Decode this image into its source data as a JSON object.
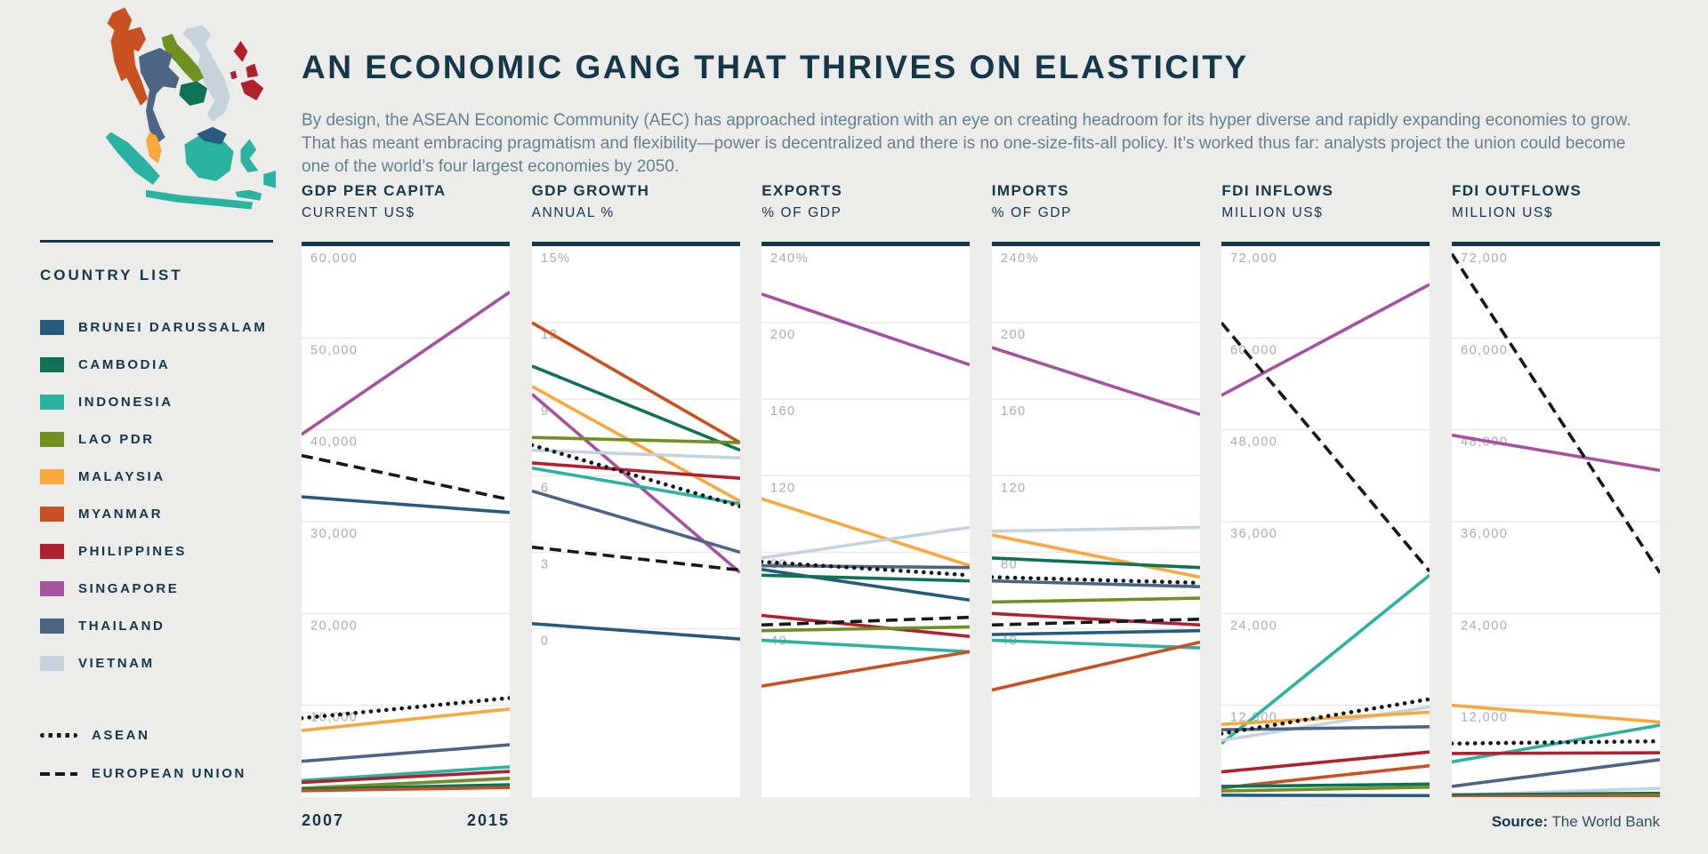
{
  "page": {
    "title": "AN ECONOMIC GANG THAT THRIVES ON ELASTICITY",
    "subtitle": "By design, the ASEAN Economic Community (AEC) has approached integration with an eye on creating headroom for its hyper diverse and rapidly expanding economies to grow. That has meant embracing pragmatism and flexibility—power is decentralized and there is no one-size-fits-all policy. It’s worked thus far: analysts project the union could become one of the world’s four largest economies by 2050.",
    "x_start_label": "2007",
    "x_end_label": "2015",
    "source_label": "Source:",
    "source_value": " The World Bank"
  },
  "sidebar": {
    "heading": "COUNTRY LIST",
    "countries": [
      {
        "key": "brunei",
        "label": "BRUNEI DARUSSALAM"
      },
      {
        "key": "cambodia",
        "label": "CAMBODIA"
      },
      {
        "key": "indonesia",
        "label": "INDONESIA"
      },
      {
        "key": "lao",
        "label": "LAO PDR"
      },
      {
        "key": "malaysia",
        "label": "MALAYSIA"
      },
      {
        "key": "myanmar",
        "label": "MYANMAR"
      },
      {
        "key": "philippines",
        "label": "PHILIPPINES"
      },
      {
        "key": "singapore",
        "label": "SINGAPORE"
      },
      {
        "key": "thailand",
        "label": "THAILAND"
      },
      {
        "key": "vietnam",
        "label": "VIETNAM"
      }
    ],
    "aggregates": [
      {
        "key": "asean",
        "label": "ASEAN",
        "style": "dotted"
      },
      {
        "key": "eu",
        "label": "EUROPEAN UNION",
        "style": "dashed"
      }
    ]
  },
  "colors": {
    "background": "#ECECEA",
    "accent_dark": "#14374A",
    "subtitle_gray": "#64808D",
    "tick_gray": "#A6AEB3",
    "gridline": "#E9E9E7",
    "line_black": "#13181C",
    "brunei": "#265B7E",
    "cambodia": "#0F7257",
    "indonesia": "#2BB3A1",
    "lao": "#6F9122",
    "malaysia": "#F9A83E",
    "myanmar": "#C95020",
    "philippines": "#B0202F",
    "singapore": "#A4549E",
    "thailand": "#4E6484",
    "vietnam": "#C6D3DC"
  },
  "chart_data": [
    {
      "type": "line",
      "title": "GDP PER CAPITA",
      "subtitle": "CURRENT US$",
      "x": [
        "2007",
        "2015"
      ],
      "ylim": [
        0,
        60000
      ],
      "grid": true,
      "ticks": [
        {
          "label": "60,000",
          "value": 60000
        },
        {
          "label": "50,000",
          "value": 50000
        },
        {
          "label": "40,000",
          "value": 40000
        },
        {
          "label": "30,000",
          "value": 30000
        },
        {
          "label": "20,000",
          "value": 20000
        },
        {
          "label": "10,000",
          "value": 10000
        }
      ],
      "series": [
        {
          "key": "singapore",
          "values": [
            39500,
            55000
          ]
        },
        {
          "key": "brunei",
          "values": [
            32700,
            31000
          ]
        },
        {
          "key": "malaysia",
          "values": [
            7250,
            9600
          ]
        },
        {
          "key": "thailand",
          "values": [
            3900,
            5700
          ]
        },
        {
          "key": "indonesia",
          "values": [
            1800,
            3300
          ]
        },
        {
          "key": "philippines",
          "values": [
            1600,
            2800
          ]
        },
        {
          "key": "vietnam",
          "values": [
            1000,
            1950
          ]
        },
        {
          "key": "lao",
          "values": [
            950,
            2050
          ]
        },
        {
          "key": "cambodia",
          "values": [
            850,
            1350
          ]
        },
        {
          "key": "myanmar",
          "values": [
            700,
            1050
          ]
        },
        {
          "key": "asean",
          "values": [
            8600,
            10800
          ]
        },
        {
          "key": "eu",
          "values": [
            37200,
            32400
          ]
        }
      ]
    },
    {
      "type": "line",
      "title": "GDP GROWTH",
      "subtitle": "ANNUAL %",
      "x": [
        "2007",
        "2015"
      ],
      "ylim": [
        -6.6,
        15
      ],
      "grid": true,
      "ticks": [
        {
          "label": "15%",
          "value": 15
        },
        {
          "label": "12",
          "value": 12
        },
        {
          "label": "9",
          "value": 9
        },
        {
          "label": "6",
          "value": 6
        },
        {
          "label": "3",
          "value": 3
        },
        {
          "label": "0",
          "value": 0
        }
      ],
      "series": [
        {
          "key": "myanmar",
          "values": [
            12.0,
            7.3
          ]
        },
        {
          "key": "cambodia",
          "values": [
            10.3,
            7.0
          ]
        },
        {
          "key": "malaysia",
          "values": [
            9.5,
            5.0
          ]
        },
        {
          "key": "singapore",
          "values": [
            9.2,
            2.2
          ]
        },
        {
          "key": "lao",
          "values": [
            7.5,
            7.3
          ]
        },
        {
          "key": "vietnam",
          "values": [
            7.0,
            6.7
          ]
        },
        {
          "key": "philippines",
          "values": [
            6.5,
            5.9
          ]
        },
        {
          "key": "indonesia",
          "values": [
            6.3,
            4.9
          ]
        },
        {
          "key": "thailand",
          "values": [
            5.4,
            3.0
          ]
        },
        {
          "key": "brunei",
          "values": [
            0.2,
            -0.4
          ]
        },
        {
          "key": "asean",
          "values": [
            7.2,
            4.8
          ]
        },
        {
          "key": "eu",
          "values": [
            3.2,
            2.3
          ]
        }
      ]
    },
    {
      "type": "line",
      "title": "EXPORTS",
      "subtitle": "% OF GDP",
      "x": [
        "2007",
        "2015"
      ],
      "ylim": [
        -48,
        240
      ],
      "grid": true,
      "ticks": [
        {
          "label": "240%",
          "value": 240
        },
        {
          "label": "200",
          "value": 200
        },
        {
          "label": "160",
          "value": 160
        },
        {
          "label": "120",
          "value": 120
        },
        {
          "label": "80",
          "value": 80
        },
        {
          "label": "40",
          "value": 40
        }
      ],
      "series": [
        {
          "key": "singapore",
          "values": [
            215,
            178
          ]
        },
        {
          "key": "malaysia",
          "values": [
            108,
            73
          ]
        },
        {
          "key": "vietnam",
          "values": [
            77,
            93
          ]
        },
        {
          "key": "thailand",
          "values": [
            73,
            72
          ]
        },
        {
          "key": "brunei",
          "values": [
            71,
            55
          ]
        },
        {
          "key": "cambodia",
          "values": [
            68,
            65
          ]
        },
        {
          "key": "philippines",
          "values": [
            47,
            36
          ]
        },
        {
          "key": "lao",
          "values": [
            39,
            41
          ]
        },
        {
          "key": "indonesia",
          "values": [
            34,
            28
          ]
        },
        {
          "key": "myanmar",
          "values": [
            10,
            28
          ]
        },
        {
          "key": "asean",
          "values": [
            75,
            68
          ]
        },
        {
          "key": "eu",
          "values": [
            42,
            46
          ]
        }
      ]
    },
    {
      "type": "line",
      "title": "IMPORTS",
      "subtitle": "% OF GDP",
      "x": [
        "2007",
        "2015"
      ],
      "ylim": [
        -48,
        240
      ],
      "grid": true,
      "ticks": [
        {
          "label": "240%",
          "value": 240
        },
        {
          "label": "200",
          "value": 200
        },
        {
          "label": "160",
          "value": 160
        },
        {
          "label": "120",
          "value": 120
        },
        {
          "label": "80",
          "value": 80
        },
        {
          "label": "40",
          "value": 40
        }
      ],
      "series": [
        {
          "key": "singapore",
          "values": [
            187,
            152
          ]
        },
        {
          "key": "vietnam",
          "values": [
            91,
            93
          ]
        },
        {
          "key": "malaysia",
          "values": [
            89,
            67
          ]
        },
        {
          "key": "cambodia",
          "values": [
            77,
            72
          ]
        },
        {
          "key": "thailand",
          "values": [
            65,
            62
          ]
        },
        {
          "key": "lao",
          "values": [
            54,
            56
          ]
        },
        {
          "key": "philippines",
          "values": [
            48,
            42
          ]
        },
        {
          "key": "brunei",
          "values": [
            37,
            39
          ]
        },
        {
          "key": "indonesia",
          "values": [
            34,
            30
          ]
        },
        {
          "key": "myanmar",
          "values": [
            8,
            33
          ]
        },
        {
          "key": "asean",
          "values": [
            67,
            64
          ]
        },
        {
          "key": "eu",
          "values": [
            42,
            45
          ]
        }
      ]
    },
    {
      "type": "line",
      "title": "FDI INFLOWS",
      "subtitle": "MILLION US$",
      "x": [
        "2007",
        "2015"
      ],
      "ylim": [
        0,
        72000
      ],
      "grid": true,
      "ticks": [
        {
          "label": "72,000",
          "value": 72000
        },
        {
          "label": "60,000",
          "value": 60000
        },
        {
          "label": "48,000",
          "value": 48000
        },
        {
          "label": "36,000",
          "value": 36000
        },
        {
          "label": "24,000",
          "value": 24000
        },
        {
          "label": "12,000",
          "value": 12000
        }
      ],
      "series": [
        {
          "key": "singapore",
          "values": [
            52500,
            67000
          ]
        },
        {
          "key": "indonesia",
          "values": [
            7000,
            29000
          ]
        },
        {
          "key": "vietnam",
          "values": [
            7400,
            11800
          ]
        },
        {
          "key": "malaysia",
          "values": [
            9500,
            11100
          ]
        },
        {
          "key": "thailand",
          "values": [
            8800,
            9200
          ]
        },
        {
          "key": "philippines",
          "values": [
            3300,
            5900
          ]
        },
        {
          "key": "myanmar",
          "values": [
            1200,
            4100
          ]
        },
        {
          "key": "cambodia",
          "values": [
            1400,
            1700
          ]
        },
        {
          "key": "lao",
          "values": [
            800,
            1300
          ]
        },
        {
          "key": "brunei",
          "values": [
            250,
            200
          ]
        },
        {
          "key": "asean",
          "values": [
            8300,
            12800
          ]
        },
        {
          "key": "eu",
          "values": [
            62000,
            29500
          ]
        }
      ]
    },
    {
      "type": "line",
      "title": "FDI OUTFLOWS",
      "subtitle": "MILLION US$",
      "x": [
        "2007",
        "2015"
      ],
      "ylim": [
        0,
        72000
      ],
      "grid": true,
      "ticks": [
        {
          "label": "72,000",
          "value": 72000
        },
        {
          "label": "60,000",
          "value": 60000
        },
        {
          "label": "48,000",
          "value": 48000
        },
        {
          "label": "36,000",
          "value": 36000
        },
        {
          "label": "24,000",
          "value": 24000
        },
        {
          "label": "12,000",
          "value": 12000
        }
      ],
      "series": [
        {
          "key": "singapore",
          "values": [
            47300,
            42700
          ]
        },
        {
          "key": "malaysia",
          "values": [
            12000,
            9800
          ]
        },
        {
          "key": "indonesia",
          "values": [
            4600,
            9400
          ]
        },
        {
          "key": "philippines",
          "values": [
            5700,
            5800
          ]
        },
        {
          "key": "thailand",
          "values": [
            1400,
            4900
          ]
        },
        {
          "key": "vietnam",
          "values": [
            250,
            1150
          ]
        },
        {
          "key": "brunei",
          "values": [
            300,
            500
          ]
        },
        {
          "key": "cambodia",
          "values": [
            150,
            450
          ]
        },
        {
          "key": "lao",
          "values": [
            0,
            250
          ]
        },
        {
          "key": "myanmar",
          "values": [
            0,
            100
          ]
        },
        {
          "key": "asean",
          "values": [
            7000,
            7300
          ]
        },
        {
          "key": "eu",
          "values": [
            71000,
            29300
          ]
        }
      ]
    }
  ]
}
